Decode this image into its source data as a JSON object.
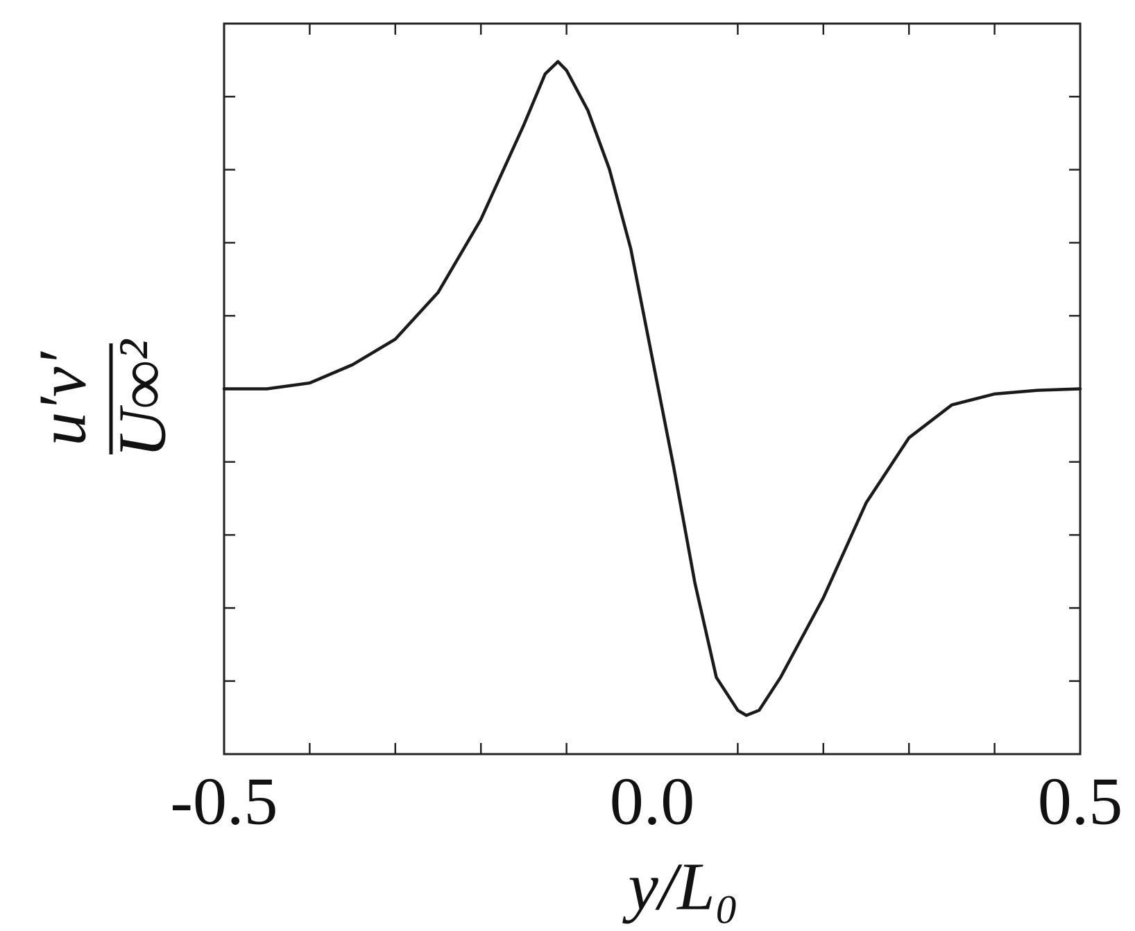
{
  "chart_data": {
    "type": "line",
    "xlabel": "y/L₀",
    "ylabel_numerator": "u′v′",
    "ylabel_denominator": "U∞²",
    "xlim": [
      -0.5,
      0.5
    ],
    "ylim": [
      -5,
      5
    ],
    "xticks": [
      {
        "value": -0.5,
        "label": "-0.5"
      },
      {
        "value": 0,
        "label": "0.0"
      },
      0.5
    ],
    "xminorticks": [
      -0.4,
      -0.3,
      -0.2,
      -0.1,
      0.1,
      0.2,
      0.3,
      0.4
    ],
    "yminorticks": [
      -4,
      -3,
      -2,
      -1,
      0,
      1,
      2,
      3,
      4
    ],
    "color": "#1a1a1a",
    "x": [
      -0.5,
      -0.45,
      -0.4,
      -0.35,
      -0.3,
      -0.25,
      -0.2,
      -0.15,
      -0.125,
      -0.11,
      -0.1,
      -0.075,
      -0.05,
      -0.025,
      0,
      0.025,
      0.05,
      0.075,
      0.1,
      0.11,
      0.125,
      0.15,
      0.2,
      0.25,
      0.3,
      0.35,
      0.4,
      0.45,
      0.5
    ],
    "values": [
      0,
      0,
      0.08,
      0.33,
      0.68,
      1.32,
      2.32,
      3.61,
      4.31,
      4.48,
      4.36,
      3.81,
      3.01,
      1.92,
      0.43,
      -1.06,
      -2.66,
      -3.95,
      -4.4,
      -4.47,
      -4.4,
      -3.95,
      -2.86,
      -1.56,
      -0.67,
      -0.22,
      -0.07,
      -0.02,
      0
    ]
  }
}
